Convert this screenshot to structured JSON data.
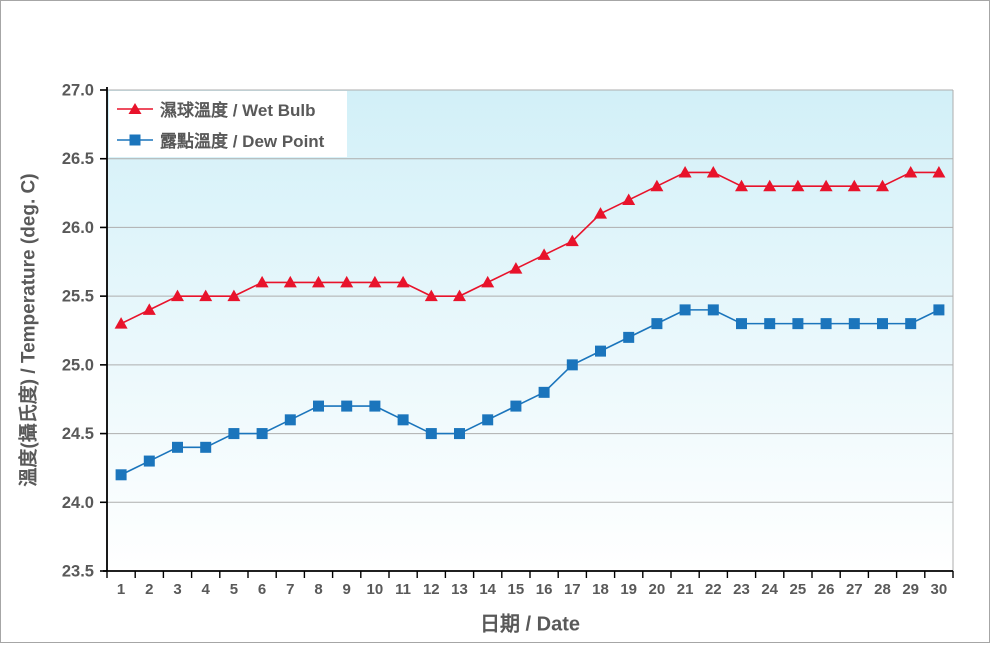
{
  "chart_data": {
    "type": "line",
    "title": "",
    "xlabel": "日期 / Date",
    "ylabel": "溫度(攝氏度) / Temperature (deg. C)",
    "ylim": [
      23.5,
      27.0
    ],
    "ytick_step": 0.5,
    "y_ticks": [
      "27.0",
      "26.5",
      "26.0",
      "25.5",
      "25.0",
      "24.5",
      "24.0",
      "23.5"
    ],
    "categories": [
      1,
      2,
      3,
      4,
      5,
      6,
      7,
      8,
      9,
      10,
      11,
      12,
      13,
      14,
      15,
      16,
      17,
      18,
      19,
      20,
      21,
      22,
      23,
      24,
      25,
      26,
      27,
      28,
      29,
      30
    ],
    "grid": "horizontal",
    "legend_position": "top-left-inside",
    "series": [
      {
        "name": "濕球溫度 / Wet Bulb",
        "marker": "triangle",
        "color": "#e8132b",
        "values": [
          25.3,
          25.4,
          25.5,
          25.5,
          25.5,
          25.6,
          25.6,
          25.6,
          25.6,
          25.6,
          25.6,
          25.5,
          25.5,
          25.6,
          25.7,
          25.8,
          25.9,
          26.1,
          26.2,
          26.3,
          26.4,
          26.4,
          26.3,
          26.3,
          26.3,
          26.3,
          26.3,
          26.3,
          26.4,
          26.4
        ]
      },
      {
        "name": "露點溫度 / Dew Point",
        "marker": "square",
        "color": "#1b75bc",
        "values": [
          24.2,
          24.3,
          24.4,
          24.4,
          24.5,
          24.5,
          24.6,
          24.7,
          24.7,
          24.7,
          24.6,
          24.5,
          24.5,
          24.6,
          24.7,
          24.8,
          25.0,
          25.1,
          25.2,
          25.3,
          25.4,
          25.4,
          25.3,
          25.3,
          25.3,
          25.3,
          25.3,
          25.3,
          25.3,
          25.4
        ]
      }
    ]
  },
  "colors": {
    "plot_bg_top": "#d2f0f8",
    "plot_bg_bottom": "#ffffff",
    "grid": "#aeaeae",
    "axis": "#000000",
    "tick_text": "#595959",
    "frame_border": "#a6a6a6",
    "legend_bg": "#ffffff"
  }
}
